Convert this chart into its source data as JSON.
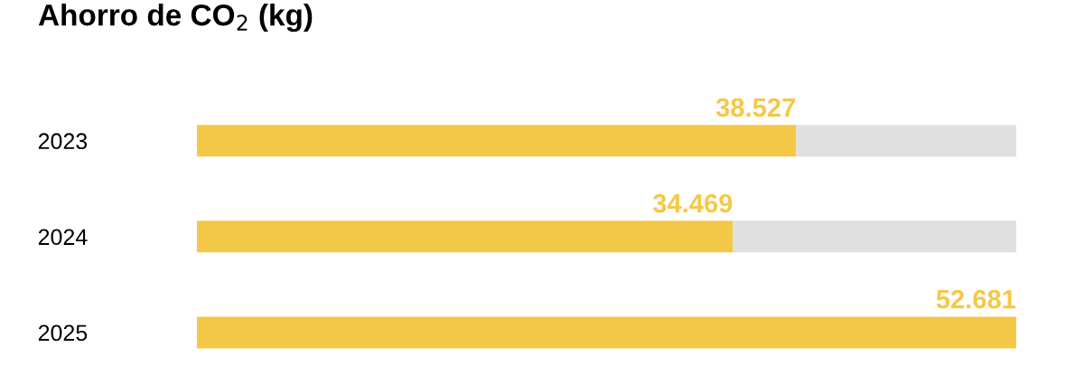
{
  "chart_data": {
    "type": "bar",
    "orientation": "horizontal",
    "title": "Ahorro de CO$_{2}$ (kg)",
    "categories": [
      "2023",
      "2024",
      "2025"
    ],
    "series": [
      {
        "color": "#f4c847",
        "values": [
          38527,
          34469,
          52681
        ],
        "value_labels": [
          "38.527",
          "34.469",
          "52.681"
        ]
      },
      {
        "color": "#e0e0e0",
        "values": [
          14154,
          18212,
          0
        ]
      }
    ],
    "stacked": true,
    "grid": false,
    "legend": false
  }
}
